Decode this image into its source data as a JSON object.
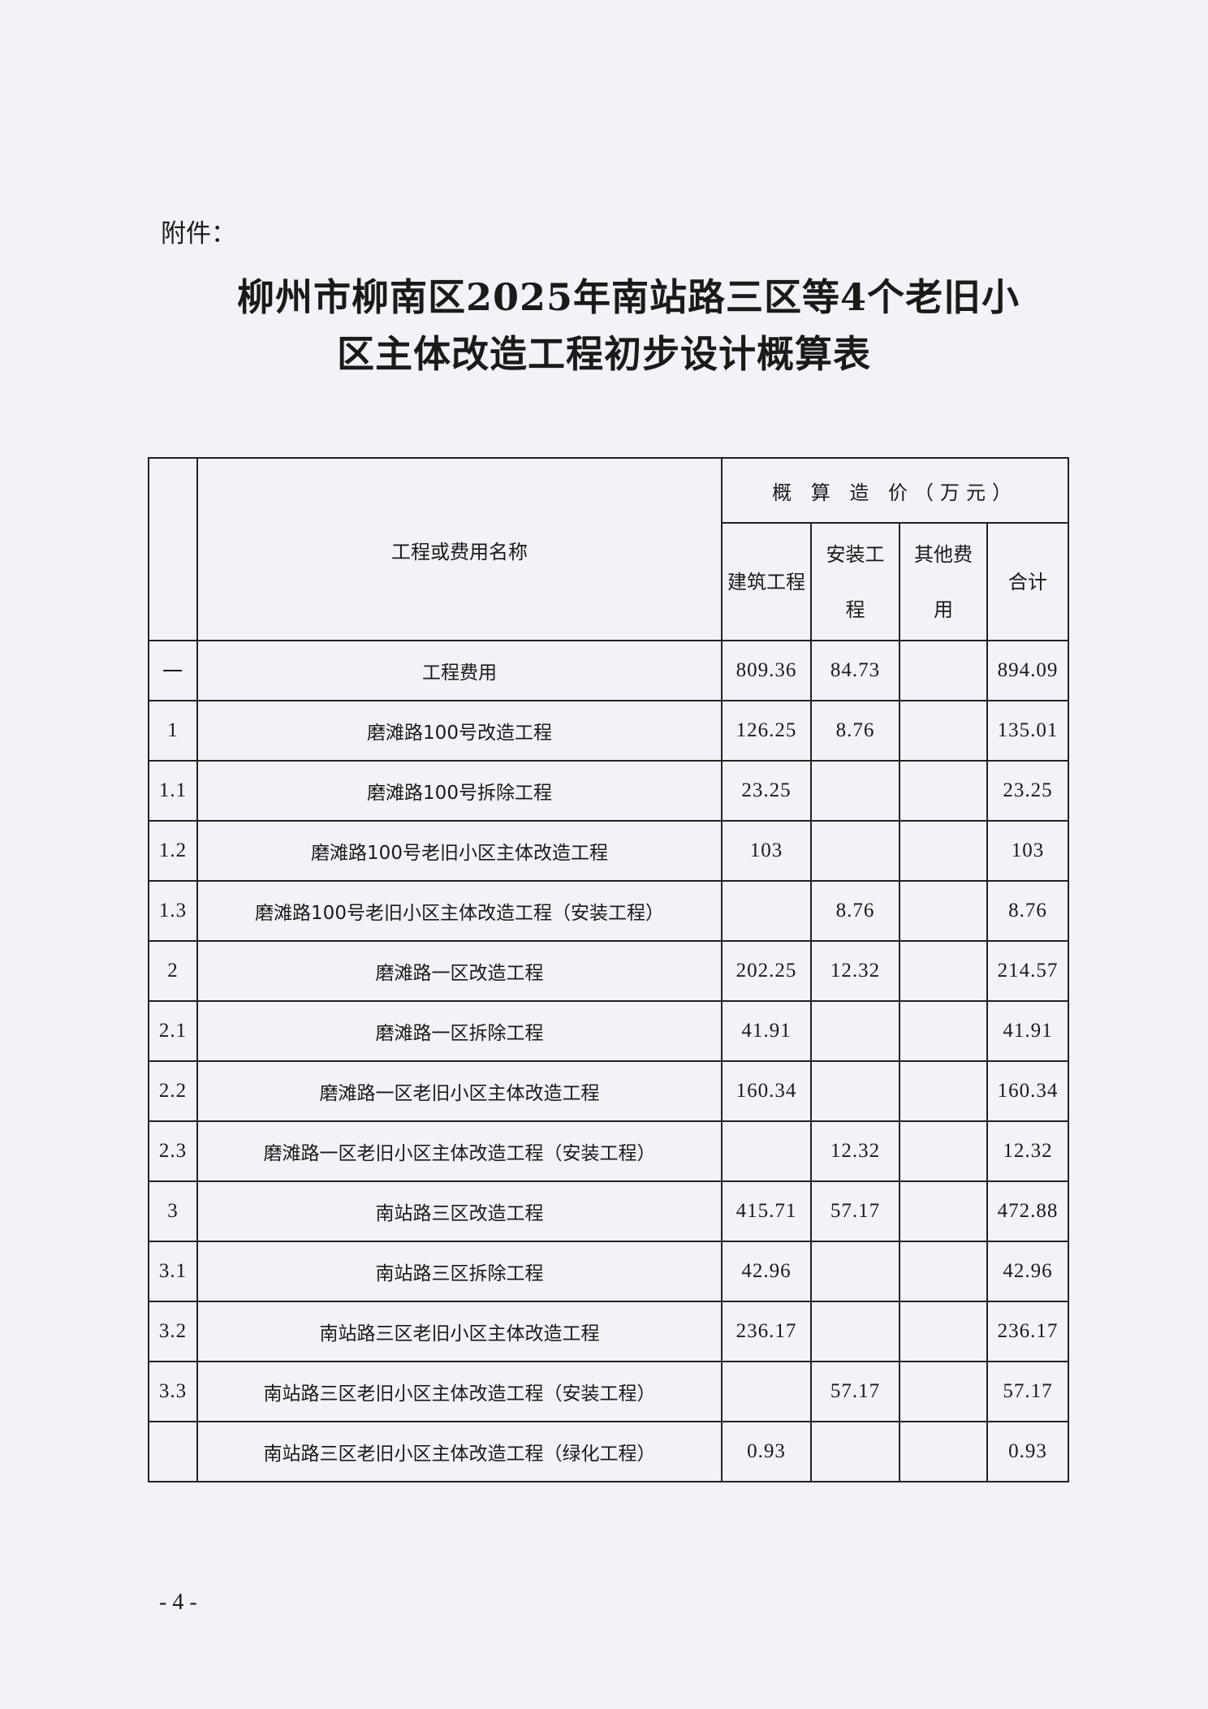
{
  "attachment_label": "附件：",
  "title_line1": "柳州市柳南区2025年南站路三区等4个老旧小",
  "title_line2": "区主体改造工程初步设计概算表",
  "table": {
    "header_name": "工程或费用名称",
    "header_group": "概 算 造 价（万元）",
    "header_cols": [
      "建筑工程",
      "安装工程",
      "其他费用",
      "合计"
    ],
    "rows": [
      {
        "no": "一",
        "name": "工程费用",
        "build": "809.36",
        "install": "84.73",
        "other": "",
        "total": "894.09"
      },
      {
        "no": "1",
        "name": "磨滩路100号改造工程",
        "build": "126.25",
        "install": "8.76",
        "other": "",
        "total": "135.01"
      },
      {
        "no": "1.1",
        "name": "磨滩路100号拆除工程",
        "build": "23.25",
        "install": "",
        "other": "",
        "total": "23.25"
      },
      {
        "no": "1.2",
        "name": "磨滩路100号老旧小区主体改造工程",
        "build": "103",
        "install": "",
        "other": "",
        "total": "103"
      },
      {
        "no": "1.3",
        "name": "磨滩路100号老旧小区主体改造工程（安装工程）",
        "build": "",
        "install": "8.76",
        "other": "",
        "total": "8.76"
      },
      {
        "no": "2",
        "name": "磨滩路一区改造工程",
        "build": "202.25",
        "install": "12.32",
        "other": "",
        "total": "214.57"
      },
      {
        "no": "2.1",
        "name": "磨滩路一区拆除工程",
        "build": "41.91",
        "install": "",
        "other": "",
        "total": "41.91"
      },
      {
        "no": "2.2",
        "name": "磨滩路一区老旧小区主体改造工程",
        "build": "160.34",
        "install": "",
        "other": "",
        "total": "160.34"
      },
      {
        "no": "2.3",
        "name": "磨滩路一区老旧小区主体改造工程（安装工程）",
        "build": "",
        "install": "12.32",
        "other": "",
        "total": "12.32"
      },
      {
        "no": "3",
        "name": "南站路三区改造工程",
        "build": "415.71",
        "install": "57.17",
        "other": "",
        "total": "472.88"
      },
      {
        "no": "3.1",
        "name": "南站路三区拆除工程",
        "build": "42.96",
        "install": "",
        "other": "",
        "total": "42.96"
      },
      {
        "no": "3.2",
        "name": "南站路三区老旧小区主体改造工程",
        "build": "236.17",
        "install": "",
        "other": "",
        "total": "236.17"
      },
      {
        "no": "3.3",
        "name": "南站路三区老旧小区主体改造工程（安装工程）",
        "build": "",
        "install": "57.17",
        "other": "",
        "total": "57.17"
      },
      {
        "no": "",
        "name": "南站路三区老旧小区主体改造工程（绿化工程）",
        "build": "0.93",
        "install": "",
        "other": "",
        "total": "0.93"
      }
    ]
  },
  "page_number": "- 4 -"
}
